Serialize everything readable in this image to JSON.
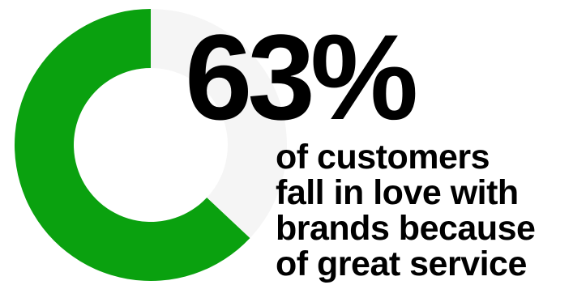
{
  "chart_data": {
    "type": "pie",
    "variant": "donut",
    "slices": [
      {
        "value": 63,
        "color": "#0aa10f"
      },
      {
        "value": 37,
        "color": "#f5f5f5"
      }
    ]
  },
  "stat": {
    "value_label": "63%",
    "caption_lines": [
      "of customers",
      "fall in love with",
      "brands because",
      "of great service"
    ]
  }
}
